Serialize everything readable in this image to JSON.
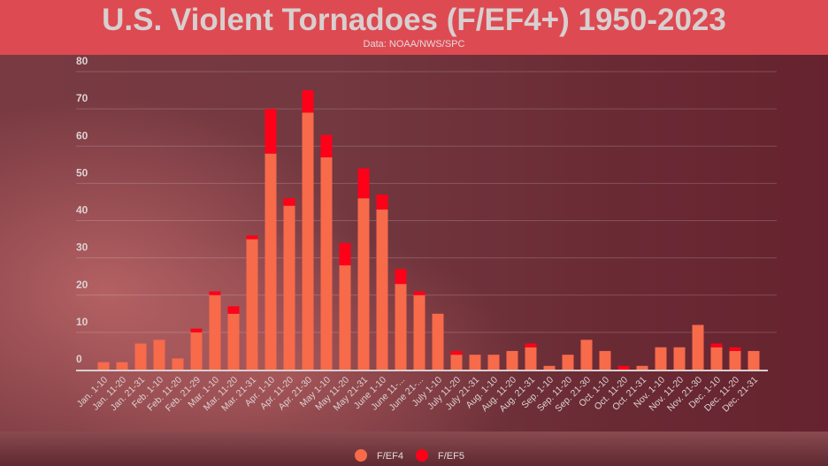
{
  "chart_data": {
    "type": "bar",
    "stacked": true,
    "title": "U.S. Violent Tornadoes (F/EF4+) 1950-2023",
    "subtitle": "Data: NOAA/NWS/SPC",
    "xlabel": "",
    "ylabel": "",
    "ylim": [
      0,
      80
    ],
    "yticks": [
      0,
      10,
      20,
      30,
      40,
      50,
      60,
      70,
      80
    ],
    "grid": true,
    "legend_position": "bottom",
    "categories": [
      "Jan. 1-10",
      "Jan. 11-20",
      "Jan. 21-31",
      "Feb. 1-10",
      "Feb. 11-20",
      "Feb. 21-29",
      "Mar. 1-10",
      "Mar. 11-20",
      "Mar. 21-31",
      "Apr. 1-10",
      "Apr. 11-20",
      "Apr. 21-30",
      "May 1-10",
      "May 11-20",
      "May 21-31",
      "June 1-10",
      "June 11-...",
      "June 21-...",
      "July 1-10",
      "July 11-20",
      "July 21-31",
      "Aug. 1-10",
      "Aug. 11-20",
      "Aug. 21-31",
      "Sep. 1-10",
      "Sep. 11-20",
      "Sep. 21-30",
      "Oct. 1-10",
      "Oct. 11-20",
      "Oct. 21-31",
      "Nov. 1-10",
      "Nov. 11-20",
      "Nov. 21-30",
      "Dec. 1-10",
      "Dec. 11-20",
      "Dec. 21-31"
    ],
    "series": [
      {
        "name": "F/EF4",
        "color": "#f76a4a",
        "values": [
          2,
          2,
          7,
          8,
          3,
          10,
          20,
          15,
          35,
          58,
          44,
          69,
          57,
          28,
          46,
          43,
          23,
          20,
          15,
          4,
          4,
          4,
          5,
          6,
          1,
          4,
          8,
          5,
          0,
          1,
          6,
          6,
          12,
          6,
          5,
          5
        ]
      },
      {
        "name": "F/EF5",
        "color": "#ff0019",
        "values": [
          0,
          0,
          0,
          0,
          0,
          1,
          1,
          2,
          1,
          12,
          2,
          6,
          6,
          6,
          8,
          4,
          4,
          1,
          0,
          1,
          0,
          0,
          0,
          1,
          0,
          0,
          0,
          0,
          1,
          0,
          0,
          0,
          0,
          1,
          1,
          0
        ]
      }
    ]
  }
}
